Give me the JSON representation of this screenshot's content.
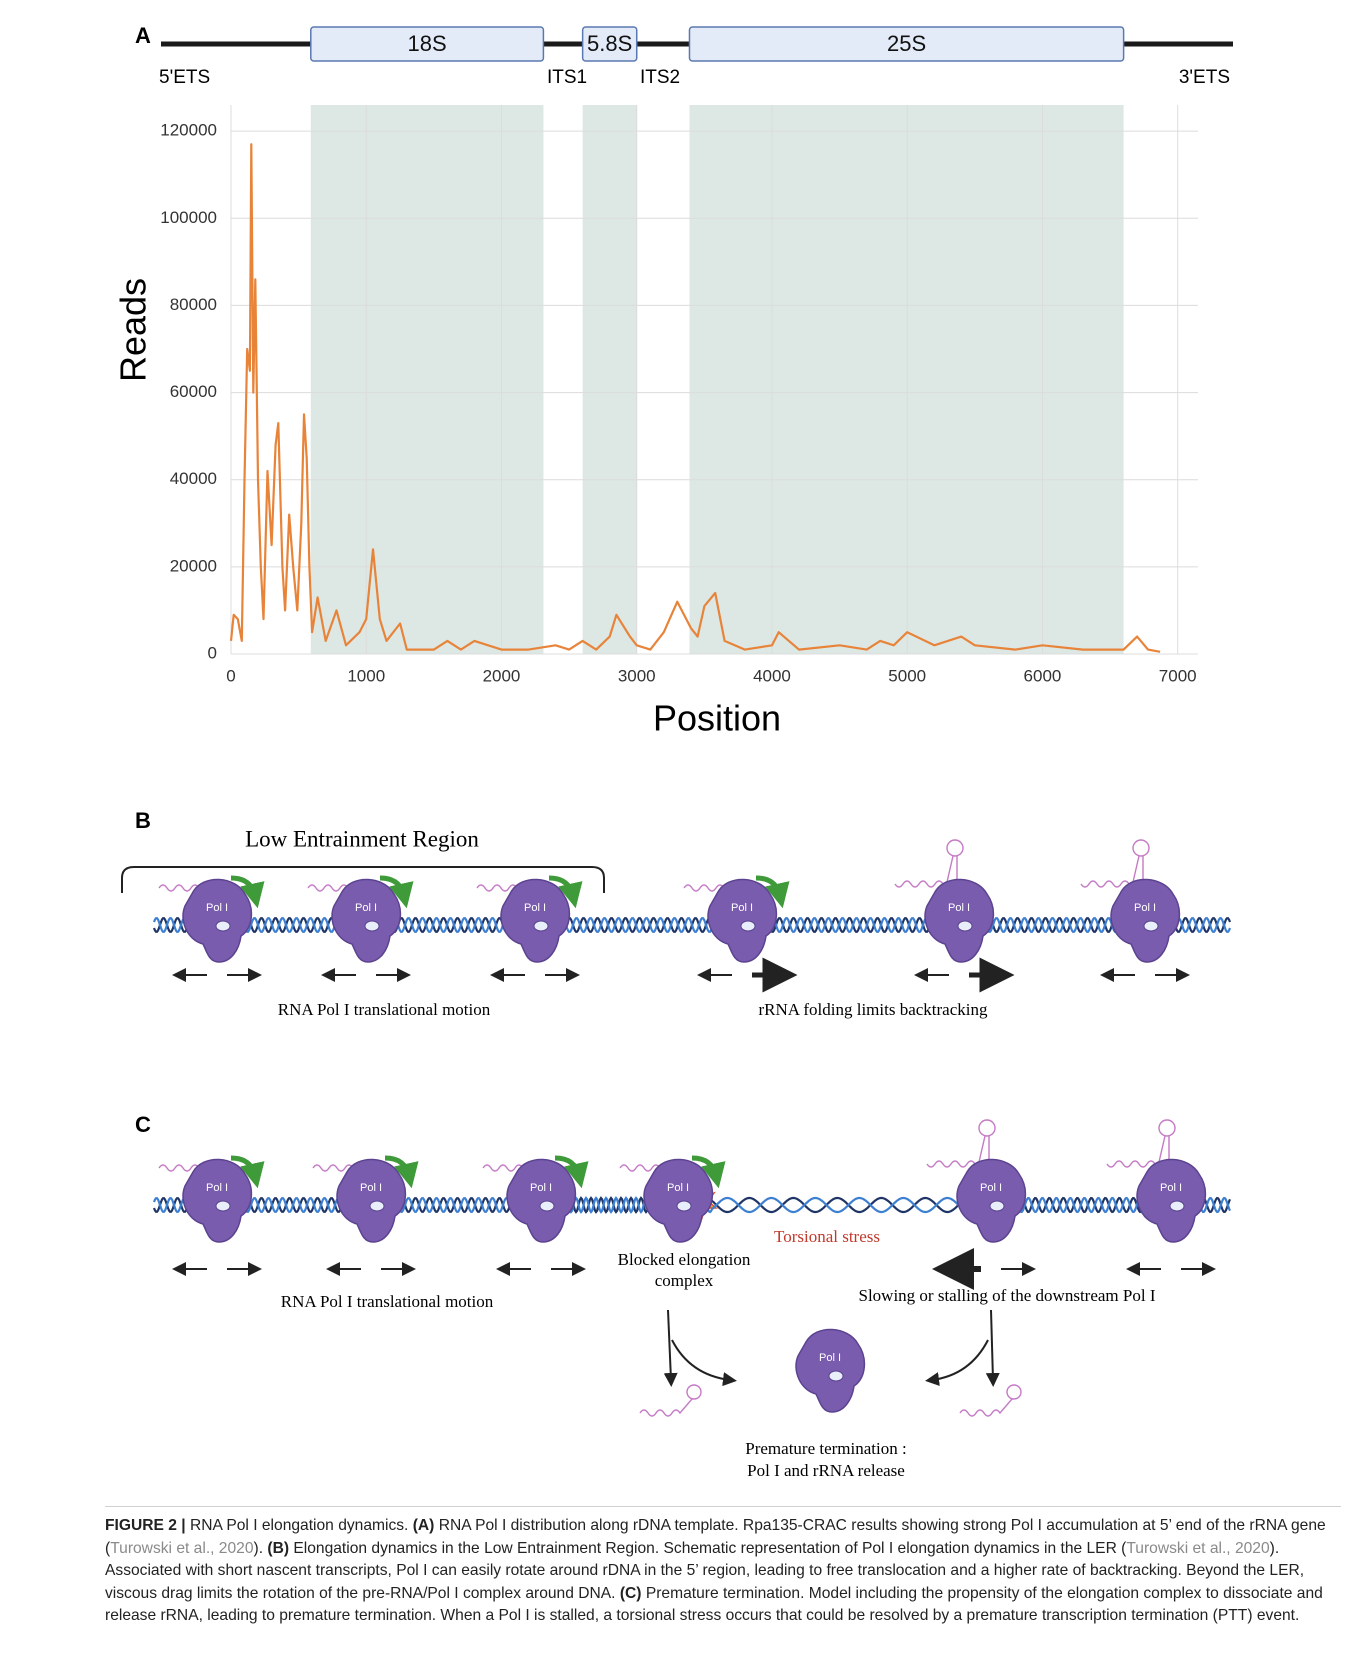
{
  "chart_data": {
    "type": "line",
    "panel_label": "A",
    "x_label": "Position",
    "y_label": "Reads",
    "regions": [
      {
        "name": "18S",
        "start": 590,
        "end": 2310
      },
      {
        "name": "5.8S",
        "start": 2600,
        "end": 3000
      },
      {
        "name": "25S",
        "start": 3390,
        "end": 6600
      }
    ],
    "region_color": "#dde8e5",
    "flank_labels": {
      "five_ets": "5'ETS",
      "its1": "ITS1",
      "its2": "ITS2",
      "three_ets": "3'ETS"
    },
    "x": [
      0,
      20,
      50,
      80,
      100,
      120,
      140,
      150,
      165,
      180,
      200,
      220,
      240,
      270,
      300,
      330,
      350,
      380,
      400,
      430,
      460,
      490,
      520,
      540,
      560,
      580,
      600,
      640,
      700,
      780,
      850,
      950,
      1000,
      1050,
      1100,
      1150,
      1250,
      1300,
      1500,
      1600,
      1700,
      1800,
      2000,
      2200,
      2400,
      2500,
      2600,
      2700,
      2800,
      2850,
      2950,
      3000,
      3100,
      3200,
      3300,
      3400,
      3450,
      3500,
      3580,
      3650,
      3800,
      4000,
      4050,
      4200,
      4500,
      4700,
      4800,
      4900,
      5000,
      5200,
      5400,
      5500,
      5800,
      6000,
      6300,
      6600,
      6700,
      6780,
      6870
    ],
    "values": [
      3000,
      9000,
      8000,
      3000,
      40000,
      70000,
      65000,
      117000,
      60000,
      86000,
      40000,
      20000,
      8000,
      42000,
      25000,
      48000,
      53000,
      20000,
      10000,
      32000,
      20000,
      10000,
      30000,
      55000,
      45000,
      20000,
      5000,
      13000,
      3000,
      10000,
      2000,
      5000,
      8000,
      24000,
      8000,
      3000,
      7000,
      1000,
      1000,
      3000,
      1000,
      3000,
      1000,
      1000,
      2000,
      1000,
      3000,
      1000,
      4000,
      9000,
      4000,
      2000,
      1000,
      5000,
      12000,
      6000,
      4000,
      11000,
      14000,
      3000,
      1000,
      2000,
      5000,
      1000,
      2000,
      1000,
      3000,
      2000,
      5000,
      2000,
      4000,
      2000,
      1000,
      2000,
      1000,
      1000,
      4000,
      1000,
      500
    ],
    "color": "#e8843a",
    "xlim": [
      0,
      7150
    ],
    "ylim": [
      0,
      126000
    ],
    "xticks": [
      0,
      1000,
      2000,
      3000,
      4000,
      5000,
      6000,
      7000
    ],
    "yticks": [
      0,
      20000,
      40000,
      60000,
      80000,
      100000,
      120000
    ],
    "grid": true
  },
  "panel_b": {
    "panel_label": "B",
    "bracket_label": "Low Entrainment Region",
    "pol_label": "Pol I",
    "left_caption": "RNA Pol I translational motion",
    "right_caption": "rRNA folding limits backtracking"
  },
  "panel_c": {
    "panel_label": "C",
    "pol_label": "Pol I",
    "stress_label": "Torsional stress",
    "blocked_label": [
      "Blocked elongation",
      "complex"
    ],
    "left_caption": "RNA Pol I translational motion",
    "right_caption": "Slowing or stalling of the downstream Pol I",
    "termination_label": [
      "Premature termination :",
      "Pol I and rRNA release"
    ]
  },
  "caption": {
    "parts": [
      "FIGURE 2 |",
      " RNA Pol I elongation dynamics. ",
      "(A)",
      " RNA Pol I distribution along rDNA template. Rpa135-CRAC results showing strong Pol I accumulation at 5’ end of the rRNA gene (",
      "Turowski et al., 2020",
      "). ",
      "(B)",
      " Elongation dynamics in the Low Entrainment Region. Schematic representation of Pol I elongation dynamics in the LER (",
      "Turowski et al., 2020",
      "). Associated with short nascent transcripts, Pol I can easily rotate around rDNA in the 5’ region, leading to free translocation and a higher rate of backtracking. Beyond the LER, viscous drag limits the rotation of the pre-RNA/Pol I complex around DNA. ",
      "(C)",
      " Premature termination. Model including the propensity of the elongation complex to dissociate and release rRNA, leading to premature termination. When a Pol I is stalled, a torsional stress occurs that could be resolved by a premature transcription termination (PTT) event."
    ]
  }
}
